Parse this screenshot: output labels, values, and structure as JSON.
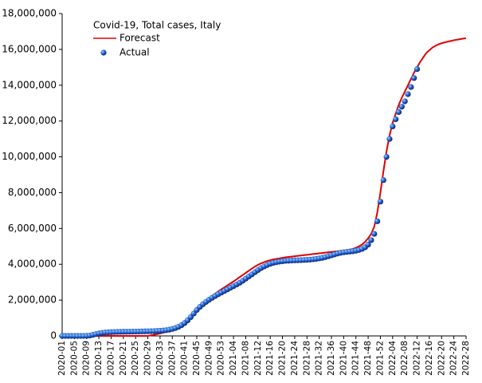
{
  "chart_data": {
    "type": "line",
    "title": "Covid-19, Total cases, Italy",
    "legend": "upper left",
    "grid": false,
    "categories": [
      "2020-01",
      null,
      null,
      null,
      "2020-05",
      null,
      null,
      null,
      "2020-09",
      null,
      null,
      null,
      "2020-13",
      null,
      null,
      null,
      "2020-17",
      null,
      null,
      null,
      "2020-21",
      null,
      null,
      null,
      "2020-25",
      null,
      null,
      null,
      "2020-29",
      null,
      null,
      null,
      "2020-33",
      null,
      null,
      null,
      "2020-37",
      null,
      null,
      null,
      "2020-41",
      null,
      null,
      null,
      "2020-45",
      null,
      null,
      null,
      "2020-49",
      null,
      null,
      null,
      "2020-53",
      null,
      null,
      null,
      "2021-04",
      null,
      null,
      null,
      "2021-08",
      null,
      null,
      null,
      "2021-12",
      null,
      null,
      null,
      "2021-16",
      null,
      null,
      null,
      "2021-20",
      null,
      null,
      null,
      "2021-24",
      null,
      null,
      null,
      "2021-28",
      null,
      null,
      null,
      "2021-32",
      null,
      null,
      null,
      "2021-36",
      null,
      null,
      null,
      "2021-40",
      null,
      null,
      null,
      "2021-44",
      null,
      null,
      null,
      "2021-48",
      null,
      null,
      null,
      "2021-52",
      null,
      null,
      null,
      "2022-04",
      null,
      null,
      null,
      "2022-08",
      null,
      null,
      null,
      "2022-12",
      null,
      null,
      null,
      "2022-16",
      null,
      null,
      null,
      "2022-20",
      null,
      null,
      null,
      "2022-24",
      null,
      null,
      null,
      "2022-28"
    ],
    "series": [
      {
        "name": "Forecast",
        "color": "#e00000",
        "style": "line",
        "values": [
          0,
          0,
          0,
          0,
          0,
          0,
          0,
          0,
          0,
          0,
          0,
          0,
          0,
          0,
          0,
          0,
          0,
          0,
          0,
          0,
          0,
          0,
          0,
          0,
          0,
          0,
          0,
          0,
          0,
          30000,
          60000,
          100000,
          140000,
          180000,
          230000,
          290000,
          360000,
          440000,
          540000,
          660000,
          800000,
          960000,
          1130000,
          1310000,
          1490000,
          1660000,
          1820000,
          1970000,
          2110000,
          2240000,
          2360000,
          2480000,
          2600000,
          2710000,
          2820000,
          2930000,
          3040000,
          3160000,
          3280000,
          3400000,
          3520000,
          3640000,
          3760000,
          3870000,
          3970000,
          4050000,
          4120000,
          4180000,
          4230000,
          4270000,
          4300000,
          4330000,
          4360000,
          4390000,
          4410000,
          4430000,
          4450000,
          4470000,
          4490000,
          4510000,
          4530000,
          4550000,
          4570000,
          4590000,
          4610000,
          4630000,
          4650000,
          4670000,
          4690000,
          4710000,
          4730000,
          4750000,
          4770000,
          4790000,
          4820000,
          4860000,
          4920000,
          5000000,
          5100000,
          5250000,
          5450000,
          5700000,
          6100000,
          6900000,
          8000000,
          9200000,
          10300000,
          11200000,
          11900000,
          12400000,
          12900000,
          13300000,
          13650000,
          14000000,
          14350000,
          14700000,
          15000000,
          15300000,
          15550000,
          15800000,
          15950000,
          16100000,
          16200000,
          16280000,
          16340000,
          16390000,
          16430000,
          16470000,
          16510000,
          16540000,
          16570000,
          16600000,
          16620000
        ]
      },
      {
        "name": "Actual",
        "color": "#1f5fd0",
        "style": "markers",
        "values": [
          0,
          0,
          0,
          0,
          0,
          0,
          0,
          0,
          5000,
          20000,
          60000,
          100000,
          140000,
          170000,
          190000,
          200000,
          210000,
          220000,
          225000,
          230000,
          233000,
          235000,
          237000,
          240000,
          243000,
          246000,
          250000,
          255000,
          260000,
          265000,
          270000,
          280000,
          290000,
          300000,
          320000,
          350000,
          390000,
          440000,
          510000,
          600000,
          720000,
          870000,
          1050000,
          1250000,
          1450000,
          1620000,
          1770000,
          1900000,
          2020000,
          2130000,
          2230000,
          2330000,
          2420000,
          2510000,
          2600000,
          2690000,
          2780000,
          2870000,
          2970000,
          3080000,
          3200000,
          3320000,
          3440000,
          3560000,
          3680000,
          3790000,
          3880000,
          3960000,
          4030000,
          4080000,
          4120000,
          4150000,
          4170000,
          4190000,
          4200000,
          4210000,
          4220000,
          4225000,
          4230000,
          4240000,
          4250000,
          4260000,
          4280000,
          4300000,
          4330000,
          4360000,
          4400000,
          4450000,
          4500000,
          4550000,
          4600000,
          4640000,
          4670000,
          4690000,
          4710000,
          4730000,
          4760000,
          4800000,
          4860000,
          4950000,
          5100000,
          5350000,
          5700000,
          6400000,
          7500000,
          8700000,
          10000000,
          11000000,
          11700000,
          12100000,
          12500000,
          12800000,
          13100000,
          13500000,
          13900000,
          14400000,
          14900000,
          null,
          null,
          null,
          null,
          null,
          null,
          null,
          null,
          null,
          null,
          null,
          null,
          null,
          null,
          null,
          null
        ]
      }
    ],
    "ylim": [
      0,
      18000000
    ],
    "yticks": [
      0,
      {
        "value": 2000000,
        "label": "2,000,000"
      },
      {
        "value": 4000000,
        "label": "4,000,000"
      },
      {
        "value": 6000000,
        "label": "6,000,000"
      },
      {
        "value": 8000000,
        "label": "8,000,000"
      },
      {
        "value": 10000000,
        "label": "10,000,000"
      },
      {
        "value": 12000000,
        "label": "12,000,000"
      },
      {
        "value": 14000000,
        "label": "14,000,000"
      },
      {
        "value": 16000000,
        "label": "16,000,000"
      },
      {
        "value": 18000000,
        "label": "18,000,000"
      }
    ]
  }
}
